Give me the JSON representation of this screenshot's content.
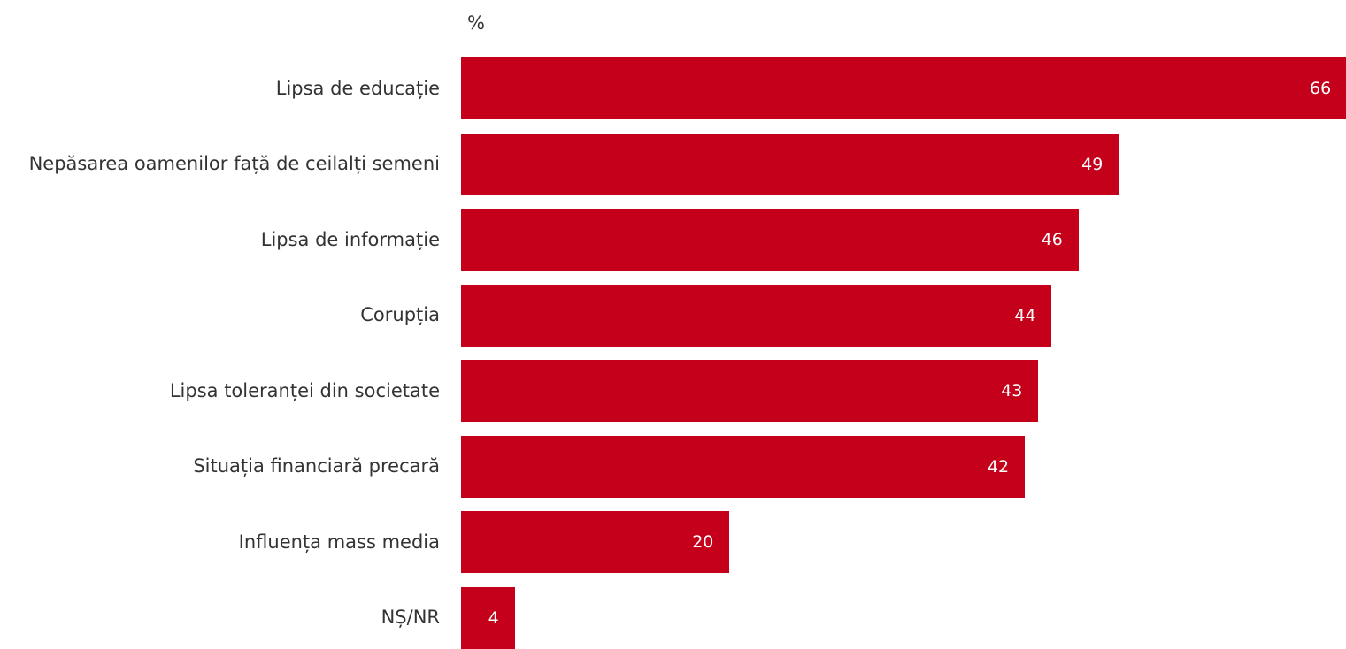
{
  "chart_data": {
    "type": "bar",
    "orientation": "horizontal",
    "unit": "%",
    "categories": [
      "Lipsa de educație",
      "Nepăsarea oamenilor față de ceilalți semeni",
      "Lipsa de informație",
      "Corupția",
      "Lipsa toleranței din societate",
      "Situația financiară precară",
      "Influența mass media",
      "NȘ/NR"
    ],
    "values": [
      66,
      49,
      46,
      44,
      43,
      42,
      20,
      4
    ],
    "bar_color": "#c4001a",
    "grid": false,
    "legend": "none"
  }
}
